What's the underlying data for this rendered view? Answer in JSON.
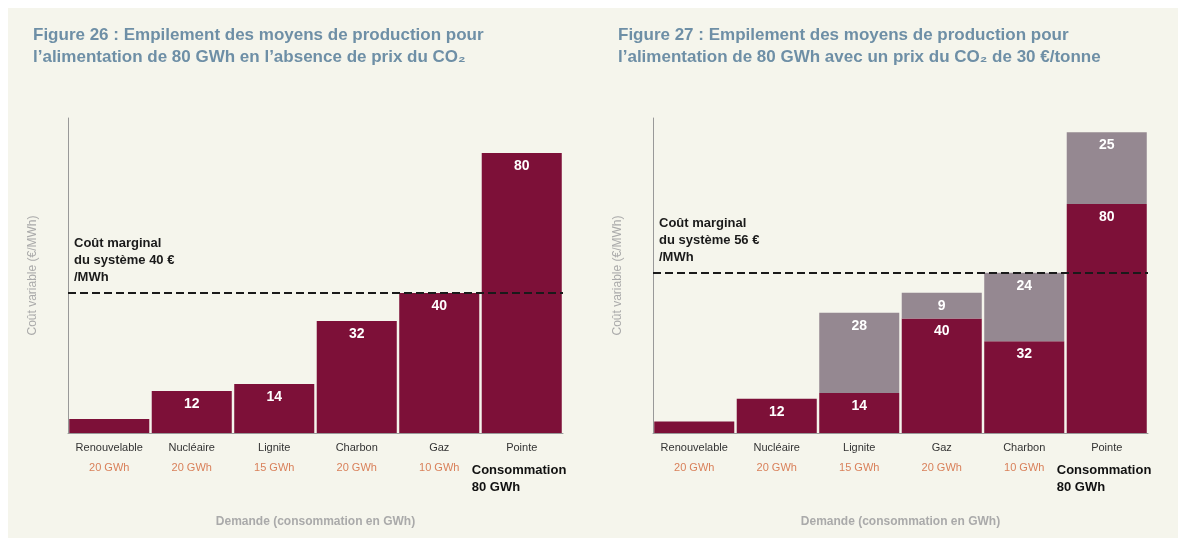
{
  "chart_data": [
    {
      "type": "bar",
      "title": "Figure 26 : Empilement des moyens de production pour l’alimentation de 80 GWh en l’absence de prix du CO₂",
      "xlabel": "Demande (consommation en GWh)",
      "ylabel": "Coût variable (€/MWh)",
      "categories": [
        "Renouvelable",
        "Nucléaire",
        "Lignite",
        "Charbon",
        "Gaz",
        "Pointe"
      ],
      "series": [
        {
          "color": "#7d1038",
          "values": [
            4,
            12,
            14,
            32,
            40,
            80
          ],
          "value_labels": [
            null,
            "12",
            "14",
            "32",
            "40",
            "80"
          ]
        }
      ],
      "ylim": [
        0,
        90
      ],
      "tick_labels": "x",
      "ref_lines": [
        {
          "axis": "y",
          "value": 40,
          "label": "Coût marginal du système 40 €/MWh",
          "color": "#1a1a1a",
          "line_style": "dashed"
        }
      ],
      "annotations": [
        "20 GWh",
        "20 GWh",
        "15 GWh",
        "20 GWh",
        "10 GWh",
        "Consommation 80 GWh"
      ]
    },
    {
      "type": "bar",
      "title": "Figure 27 : Empilement des moyens de production pour l’alimentation de 80 GWh avec un prix du CO₂ de 30 €/tonne",
      "xlabel": "Demande (consommation en GWh)",
      "ylabel": "Coût variable (€/MWh)",
      "categories": [
        "Renouvelable",
        "Nucléaire",
        "Lignite",
        "Gaz",
        "Charbon",
        "Pointe"
      ],
      "stacked": true,
      "series": [
        {
          "color": "#7d1038",
          "values": [
            4,
            12,
            14,
            40,
            32,
            80
          ],
          "value_labels": [
            null,
            "12",
            "14",
            "40",
            "32",
            "80"
          ]
        },
        {
          "color": "#958891",
          "values": [
            null,
            null,
            28,
            9,
            24,
            25
          ],
          "value_labels": [
            null,
            null,
            "28",
            "9",
            "24",
            "25"
          ]
        }
      ],
      "ylim": [
        0,
        110
      ],
      "tick_labels": "x",
      "ref_lines": [
        {
          "axis": "y",
          "value": 56,
          "label": "Coût marginal du système 56 €/MWh",
          "color": "#1a1a1a",
          "line_style": "dashed"
        }
      ],
      "annotations": [
        "20 GWh",
        "20 GWh",
        "15 GWh",
        "20 GWh",
        "10 GWh",
        "Consommation 80 GWh"
      ]
    }
  ]
}
